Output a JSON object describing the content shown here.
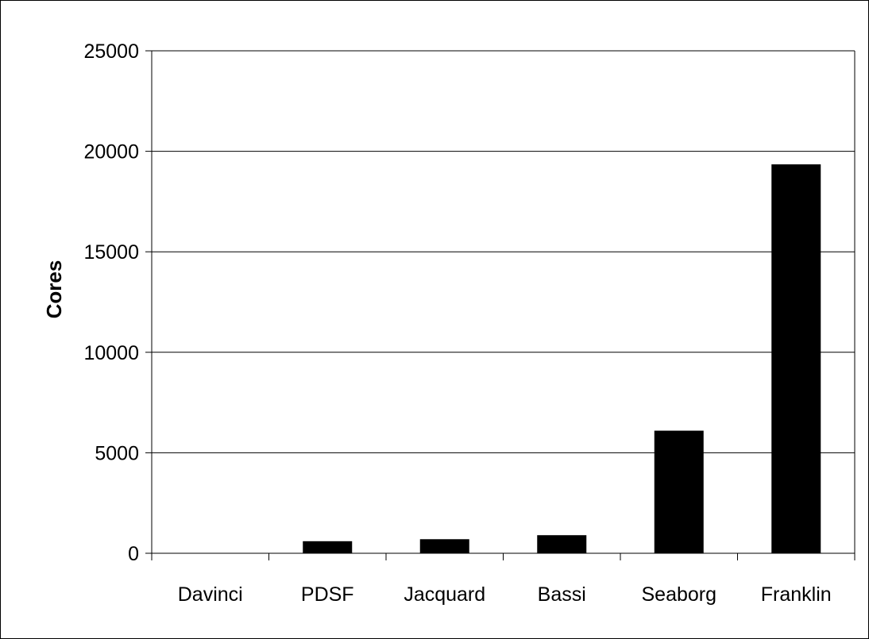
{
  "chart_data": {
    "type": "bar",
    "categories": [
      "Davinci",
      "PDSF",
      "Jacquard",
      "Bassi",
      "Seaborg",
      "Franklin"
    ],
    "values": [
      0,
      600,
      700,
      900,
      6100,
      19350
    ],
    "title": "",
    "xlabel": "",
    "ylabel": "Cores",
    "ylim": [
      0,
      25000
    ],
    "yticks": [
      0,
      5000,
      10000,
      15000,
      20000,
      25000
    ],
    "grid": true,
    "legend": "none",
    "bar_color": "#000000"
  }
}
